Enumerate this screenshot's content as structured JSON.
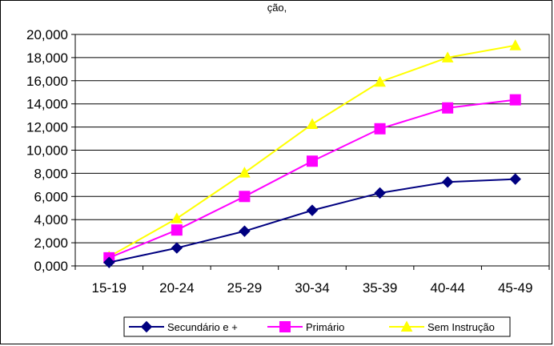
{
  "chart_data": {
    "type": "line",
    "title": "",
    "title_partial": "ção,",
    "xlabel": "",
    "ylabel": "",
    "categories": [
      "15-19",
      "20-24",
      "25-29",
      "30-34",
      "35-39",
      "40-44",
      "45-49"
    ],
    "ylim": [
      0,
      20000
    ],
    "ytick_step": 2000,
    "ytick_labels": [
      "0,000",
      "2,000",
      "4,000",
      "6,000",
      "8,000",
      "10,000",
      "12,000",
      "14,000",
      "16,000",
      "18,000",
      "20,000"
    ],
    "grid": true,
    "legend_position": "bottom",
    "series": [
      {
        "name": "Secundário e +",
        "color": "#000080",
        "marker": "diamond",
        "values": [
          300,
          1550,
          3000,
          4800,
          6300,
          7250,
          7500
        ]
      },
      {
        "name": "Primário",
        "color": "#FF00FF",
        "marker": "square",
        "values": [
          700,
          3100,
          6000,
          9050,
          11850,
          13650,
          14350
        ]
      },
      {
        "name": "Sem Instrução",
        "color": "#FFFF00",
        "marker": "triangle",
        "values": [
          800,
          4100,
          8050,
          12250,
          15900,
          18000,
          19050
        ]
      }
    ]
  }
}
